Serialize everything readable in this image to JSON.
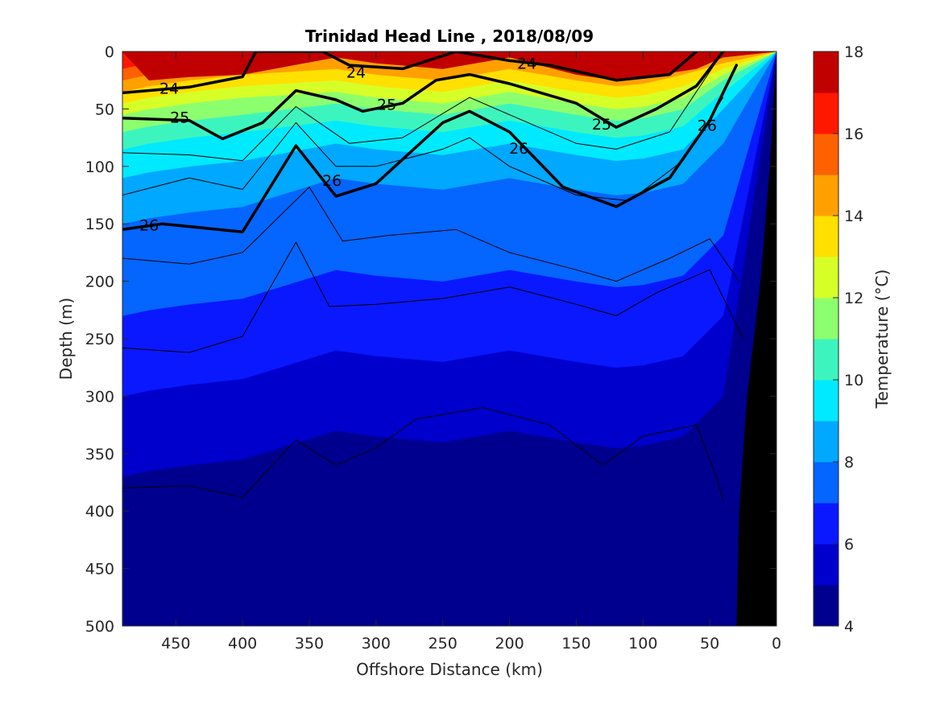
{
  "chart_data": {
    "type": "filled-contour",
    "title": "Trinidad Head Line , 2018/08/09",
    "xlabel": "Offshore Distance (km)",
    "ylabel": "Depth (m)",
    "colorbar_label": "Temperature (°C)",
    "xlim": [
      490,
      0
    ],
    "ylim": [
      0,
      500
    ],
    "x_ticks": [
      450,
      400,
      350,
      300,
      250,
      200,
      150,
      100,
      50,
      0
    ],
    "y_ticks": [
      0,
      50,
      100,
      150,
      200,
      250,
      300,
      350,
      400,
      450,
      500
    ],
    "colorbar_ticks": [
      4,
      6,
      8,
      10,
      12,
      14,
      16,
      18
    ],
    "temperature_levels": [
      4,
      5,
      6,
      7,
      8,
      9,
      10,
      11,
      12,
      13,
      14,
      15,
      16,
      17,
      18
    ],
    "temperature_colors": [
      "#00008f",
      "#0000cc",
      "#0a18ff",
      "#0565ff",
      "#00a8ff",
      "#00eaff",
      "#3cf5be",
      "#8cff6e",
      "#d6ff28",
      "#ffe000",
      "#ffa000",
      "#ff6000",
      "#ff1800",
      "#c00000"
    ],
    "temperature_isotherms": [
      {
        "temp": 17,
        "points": [
          [
            470,
            25
          ],
          [
            440,
            22
          ],
          [
            400,
            20
          ],
          [
            330,
            5
          ],
          [
            300,
            10
          ],
          [
            250,
            15
          ],
          [
            200,
            5
          ],
          [
            150,
            20
          ],
          [
            120,
            25
          ],
          [
            100,
            22
          ],
          [
            60,
            15
          ],
          [
            40,
            5
          ]
        ]
      },
      {
        "temp": 16,
        "points": [
          [
            490,
            15
          ],
          [
            470,
            10
          ],
          [
            440,
            8
          ],
          [
            400,
            5
          ],
          [
            330,
            0
          ],
          [
            300,
            5
          ],
          [
            250,
            10
          ],
          [
            200,
            0
          ],
          [
            150,
            10
          ],
          [
            120,
            15
          ],
          [
            100,
            12
          ],
          [
            70,
            5
          ]
        ]
      },
      {
        "temp": 15,
        "points": [
          [
            490,
            25
          ],
          [
            470,
            20
          ],
          [
            440,
            15
          ],
          [
            400,
            10
          ],
          [
            330,
            5
          ],
          [
            300,
            10
          ],
          [
            250,
            15
          ],
          [
            200,
            5
          ],
          [
            150,
            15
          ],
          [
            120,
            20
          ],
          [
            100,
            18
          ],
          [
            70,
            10
          ],
          [
            40,
            5
          ]
        ]
      },
      {
        "temp": 14,
        "points": [
          [
            490,
            35
          ],
          [
            470,
            30
          ],
          [
            440,
            25
          ],
          [
            400,
            20
          ],
          [
            330,
            15
          ],
          [
            300,
            20
          ],
          [
            250,
            25
          ],
          [
            200,
            15
          ],
          [
            150,
            25
          ],
          [
            120,
            30
          ],
          [
            100,
            28
          ],
          [
            70,
            20
          ],
          [
            40,
            10
          ]
        ]
      },
      {
        "temp": 13,
        "points": [
          [
            490,
            45
          ],
          [
            470,
            40
          ],
          [
            440,
            35
          ],
          [
            400,
            30
          ],
          [
            330,
            25
          ],
          [
            300,
            30
          ],
          [
            250,
            35
          ],
          [
            200,
            25
          ],
          [
            150,
            35
          ],
          [
            120,
            40
          ],
          [
            100,
            38
          ],
          [
            70,
            30
          ],
          [
            40,
            15
          ]
        ]
      },
      {
        "temp": 12,
        "points": [
          [
            490,
            55
          ],
          [
            470,
            50
          ],
          [
            440,
            45
          ],
          [
            400,
            40
          ],
          [
            330,
            35
          ],
          [
            300,
            40
          ],
          [
            250,
            45
          ],
          [
            200,
            35
          ],
          [
            150,
            45
          ],
          [
            120,
            50
          ],
          [
            100,
            48
          ],
          [
            70,
            40
          ],
          [
            40,
            20
          ]
        ]
      },
      {
        "temp": 11,
        "points": [
          [
            490,
            70
          ],
          [
            470,
            65
          ],
          [
            440,
            60
          ],
          [
            400,
            55
          ],
          [
            330,
            45
          ],
          [
            300,
            50
          ],
          [
            250,
            55
          ],
          [
            200,
            45
          ],
          [
            150,
            55
          ],
          [
            120,
            60
          ],
          [
            100,
            58
          ],
          [
            70,
            50
          ],
          [
            40,
            25
          ]
        ]
      },
      {
        "temp": 10,
        "points": [
          [
            490,
            85
          ],
          [
            470,
            80
          ],
          [
            440,
            75
          ],
          [
            400,
            70
          ],
          [
            330,
            60
          ],
          [
            300,
            65
          ],
          [
            250,
            70
          ],
          [
            200,
            60
          ],
          [
            150,
            70
          ],
          [
            120,
            75
          ],
          [
            100,
            73
          ],
          [
            70,
            65
          ],
          [
            40,
            35
          ]
        ]
      },
      {
        "temp": 9,
        "points": [
          [
            490,
            110
          ],
          [
            470,
            105
          ],
          [
            440,
            100
          ],
          [
            400,
            95
          ],
          [
            330,
            80
          ],
          [
            300,
            85
          ],
          [
            250,
            90
          ],
          [
            200,
            80
          ],
          [
            150,
            90
          ],
          [
            120,
            95
          ],
          [
            100,
            93
          ],
          [
            70,
            85
          ],
          [
            40,
            50
          ]
        ]
      },
      {
        "temp": 8,
        "points": [
          [
            490,
            150
          ],
          [
            470,
            145
          ],
          [
            440,
            140
          ],
          [
            400,
            135
          ],
          [
            330,
            110
          ],
          [
            300,
            115
          ],
          [
            250,
            120
          ],
          [
            200,
            110
          ],
          [
            150,
            120
          ],
          [
            120,
            125
          ],
          [
            100,
            123
          ],
          [
            70,
            115
          ],
          [
            40,
            80
          ]
        ]
      },
      {
        "temp": 7,
        "points": [
          [
            490,
            230
          ],
          [
            470,
            225
          ],
          [
            440,
            220
          ],
          [
            400,
            215
          ],
          [
            330,
            190
          ],
          [
            300,
            195
          ],
          [
            250,
            200
          ],
          [
            200,
            190
          ],
          [
            150,
            200
          ],
          [
            120,
            205
          ],
          [
            100,
            203
          ],
          [
            70,
            195
          ],
          [
            40,
            160
          ]
        ]
      },
      {
        "temp": 6,
        "points": [
          [
            490,
            300
          ],
          [
            470,
            295
          ],
          [
            440,
            290
          ],
          [
            400,
            285
          ],
          [
            330,
            260
          ],
          [
            300,
            265
          ],
          [
            250,
            270
          ],
          [
            200,
            260
          ],
          [
            150,
            270
          ],
          [
            120,
            275
          ],
          [
            100,
            273
          ],
          [
            70,
            265
          ],
          [
            40,
            230
          ]
        ]
      },
      {
        "temp": 5,
        "points": [
          [
            490,
            370
          ],
          [
            470,
            365
          ],
          [
            440,
            360
          ],
          [
            400,
            355
          ],
          [
            330,
            330
          ],
          [
            300,
            335
          ],
          [
            250,
            340
          ],
          [
            200,
            330
          ],
          [
            150,
            340
          ],
          [
            120,
            345
          ],
          [
            100,
            343
          ],
          [
            70,
            335
          ],
          [
            40,
            300
          ]
        ]
      }
    ],
    "density_contours": [
      {
        "label": "24",
        "bold": true,
        "points": [
          [
            490,
            36
          ],
          [
            440,
            31
          ],
          [
            400,
            22
          ],
          [
            390,
            0
          ],
          [
            340,
            0
          ],
          [
            320,
            12
          ],
          [
            280,
            15
          ],
          [
            240,
            0
          ],
          [
            200,
            8
          ],
          [
            170,
            12
          ],
          [
            120,
            25
          ],
          [
            80,
            20
          ],
          [
            60,
            0
          ]
        ]
      },
      {
        "label": "25",
        "bold": true,
        "points": [
          [
            490,
            58
          ],
          [
            440,
            60
          ],
          [
            415,
            76
          ],
          [
            385,
            62
          ],
          [
            360,
            34
          ],
          [
            330,
            42
          ],
          [
            310,
            52
          ],
          [
            280,
            45
          ],
          [
            255,
            25
          ],
          [
            230,
            20
          ],
          [
            200,
            28
          ],
          [
            150,
            45
          ],
          [
            120,
            66
          ],
          [
            90,
            50
          ],
          [
            60,
            30
          ],
          [
            40,
            0
          ]
        ]
      },
      {
        "label": "26",
        "bold": true,
        "points": [
          [
            490,
            155
          ],
          [
            460,
            150
          ],
          [
            400,
            157
          ],
          [
            360,
            82
          ],
          [
            330,
            126
          ],
          [
            300,
            115
          ],
          [
            250,
            62
          ],
          [
            230,
            52
          ],
          [
            200,
            70
          ],
          [
            160,
            118
          ],
          [
            120,
            135
          ],
          [
            80,
            110
          ],
          [
            50,
            60
          ],
          [
            30,
            12
          ]
        ]
      },
      {
        "label": "",
        "bold": false,
        "points": [
          [
            490,
            88
          ],
          [
            440,
            90
          ],
          [
            400,
            95
          ],
          [
            360,
            48
          ],
          [
            320,
            80
          ],
          [
            280,
            75
          ],
          [
            230,
            40
          ],
          [
            190,
            60
          ],
          [
            150,
            80
          ],
          [
            120,
            85
          ],
          [
            80,
            70
          ],
          [
            40,
            0
          ]
        ]
      },
      {
        "label": "",
        "bold": false,
        "points": [
          [
            490,
            125
          ],
          [
            440,
            110
          ],
          [
            400,
            120
          ],
          [
            360,
            62
          ],
          [
            330,
            100
          ],
          [
            300,
            100
          ],
          [
            250,
            85
          ],
          [
            230,
            75
          ],
          [
            200,
            100
          ],
          [
            150,
            125
          ],
          [
            110,
            130
          ],
          [
            70,
            95
          ],
          [
            40,
            40
          ]
        ]
      },
      {
        "label": "",
        "bold": false,
        "points": [
          [
            490,
            180
          ],
          [
            440,
            185
          ],
          [
            400,
            175
          ],
          [
            350,
            118
          ],
          [
            325,
            165
          ],
          [
            290,
            160
          ],
          [
            240,
            155
          ],
          [
            200,
            175
          ],
          [
            150,
            190
          ],
          [
            120,
            200
          ],
          [
            80,
            180
          ],
          [
            50,
            163
          ],
          [
            28,
            200
          ]
        ]
      },
      {
        "label": "",
        "bold": false,
        "points": [
          [
            490,
            258
          ],
          [
            440,
            262
          ],
          [
            400,
            248
          ],
          [
            360,
            166
          ],
          [
            335,
            222
          ],
          [
            300,
            220
          ],
          [
            250,
            215
          ],
          [
            200,
            205
          ],
          [
            150,
            220
          ],
          [
            120,
            230
          ],
          [
            90,
            210
          ],
          [
            50,
            190
          ],
          [
            25,
            250
          ]
        ]
      },
      {
        "label": "",
        "bold": false,
        "points": [
          [
            490,
            380
          ],
          [
            440,
            378
          ],
          [
            400,
            388
          ],
          [
            360,
            338
          ],
          [
            330,
            360
          ],
          [
            300,
            345
          ],
          [
            270,
            320
          ],
          [
            220,
            310
          ],
          [
            170,
            325
          ],
          [
            130,
            360
          ],
          [
            100,
            335
          ],
          [
            60,
            325
          ],
          [
            45,
            370
          ],
          [
            40,
            390
          ]
        ]
      }
    ],
    "contour_labels": [
      {
        "text": "24",
        "x": 455,
        "y": 32
      },
      {
        "text": "24",
        "x": 315,
        "y": 18
      },
      {
        "text": "24",
        "x": 187,
        "y": 10
      },
      {
        "text": "25",
        "x": 447,
        "y": 57
      },
      {
        "text": "25",
        "x": 292,
        "y": 46
      },
      {
        "text": "25",
        "x": 131,
        "y": 63
      },
      {
        "text": "26",
        "x": 470,
        "y": 151
      },
      {
        "text": "26",
        "x": 333,
        "y": 112
      },
      {
        "text": "26",
        "x": 193,
        "y": 84
      },
      {
        "text": "26",
        "x": 52,
        "y": 64
      }
    ],
    "bottom_profile": [
      [
        30,
        500
      ],
      [
        28,
        400
      ],
      [
        22,
        300
      ],
      [
        12,
        200
      ],
      [
        5,
        100
      ],
      [
        0,
        0
      ]
    ],
    "colors": {
      "bottom_fill": "#000000",
      "frame": "#262626",
      "bold_contour": "#000000"
    }
  }
}
